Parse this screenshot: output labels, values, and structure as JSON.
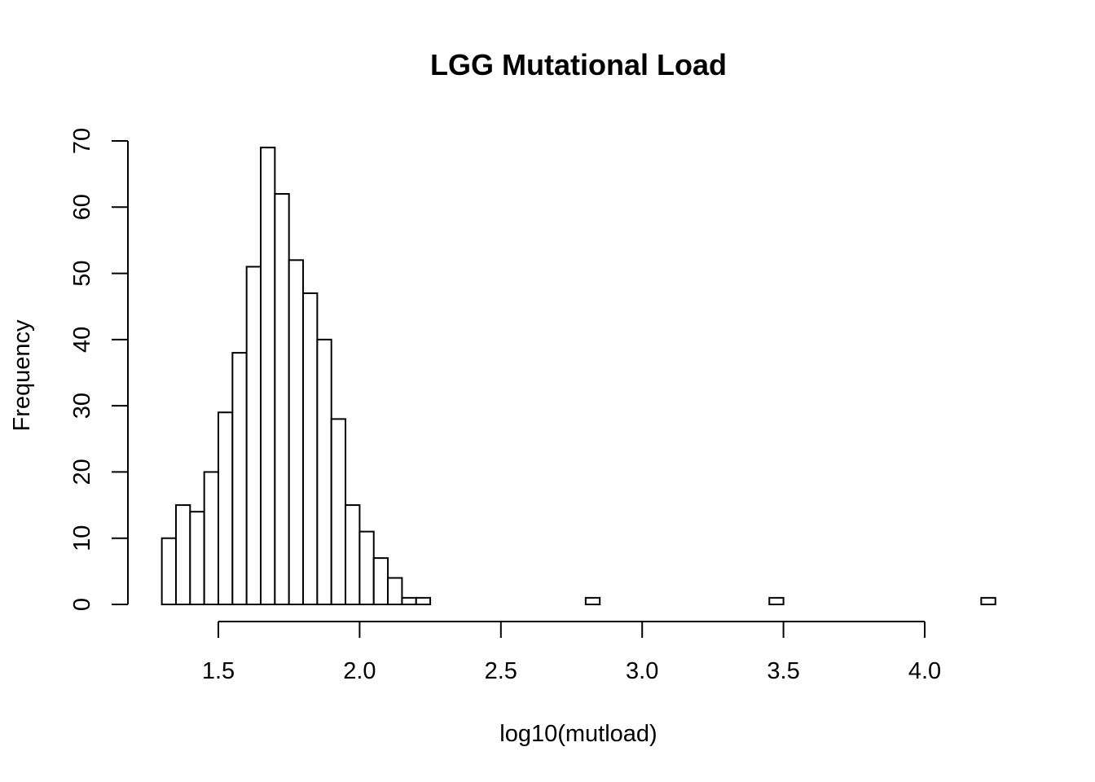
{
  "chart_data": {
    "type": "bar",
    "title": "LGG Mutational Load",
    "xlabel": "log10(mutload)",
    "ylabel": "Frequency",
    "bin_width": 0.05,
    "bins_start": [
      1.3,
      1.35,
      1.4,
      1.45,
      1.5,
      1.55,
      1.6,
      1.65,
      1.7,
      1.75,
      1.8,
      1.85,
      1.9,
      1.95,
      2.0,
      2.05,
      2.1,
      2.15,
      2.2,
      2.25,
      2.3,
      2.35,
      2.4,
      2.45,
      2.5,
      2.55,
      2.6,
      2.65,
      2.7,
      2.75,
      2.8,
      2.85,
      2.9,
      2.95,
      3.0,
      3.05,
      3.1,
      3.15,
      3.2,
      3.25,
      3.3,
      3.35,
      3.4,
      3.45,
      3.5,
      3.55,
      3.6,
      3.65,
      3.7,
      3.75,
      3.8,
      3.85,
      3.9,
      3.95,
      4.0,
      4.05,
      4.1,
      4.15,
      4.2
    ],
    "values": [
      10,
      15,
      14,
      20,
      29,
      38,
      51,
      69,
      62,
      52,
      47,
      40,
      28,
      15,
      11,
      7,
      4,
      1,
      1,
      0,
      0,
      0,
      0,
      0,
      0,
      0,
      0,
      0,
      0,
      0,
      1,
      0,
      0,
      0,
      0,
      0,
      0,
      0,
      0,
      0,
      0,
      0,
      0,
      1,
      0,
      0,
      0,
      0,
      0,
      0,
      0,
      0,
      0,
      0,
      0,
      0,
      0,
      0,
      1
    ],
    "xlim": [
      1.3,
      4.25
    ],
    "ylim": [
      0,
      70
    ],
    "x_ticks": [
      1.5,
      2.0,
      2.5,
      3.0,
      3.5,
      4.0
    ],
    "x_tick_labels": [
      "1.5",
      "2.0",
      "2.5",
      "3.0",
      "3.5",
      "4.0"
    ],
    "y_ticks": [
      0,
      10,
      20,
      30,
      40,
      50,
      60,
      70
    ],
    "y_tick_labels": [
      "0",
      "10",
      "20",
      "30",
      "40",
      "50",
      "60",
      "70"
    ],
    "grid": false,
    "legend": "none"
  }
}
